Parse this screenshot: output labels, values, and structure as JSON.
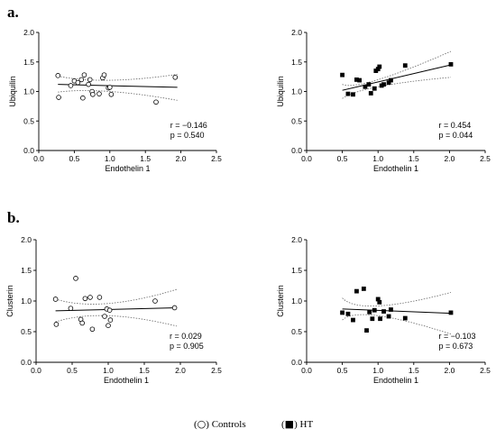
{
  "panel_labels": [
    "a.",
    "b."
  ],
  "legend": [
    {
      "symbol": "○",
      "label": "Controls"
    },
    {
      "symbol": "■",
      "label": "HT"
    }
  ],
  "chart_data": [
    {
      "type": "scatter",
      "panel": "a",
      "group": "Controls",
      "marker": "open-circle",
      "xlabel": "Endothelin 1",
      "ylabel": "Ubiquilin",
      "xlim": [
        0.0,
        2.5
      ],
      "ylim": [
        0.0,
        2.0
      ],
      "xticks": [
        "0.0",
        "0.5",
        "1.0",
        "1.5",
        "2.0",
        "2.5"
      ],
      "yticks": [
        "0.0",
        "0.5",
        "1.0",
        "1.5",
        "2.0"
      ],
      "points": [
        [
          0.27,
          1.27
        ],
        [
          0.28,
          0.9
        ],
        [
          0.45,
          1.1
        ],
        [
          0.5,
          1.18
        ],
        [
          0.55,
          1.15
        ],
        [
          0.6,
          1.2
        ],
        [
          0.62,
          0.89
        ],
        [
          0.64,
          1.28
        ],
        [
          0.7,
          1.12
        ],
        [
          0.72,
          1.2
        ],
        [
          0.75,
          1.0
        ],
        [
          0.76,
          0.95
        ],
        [
          0.85,
          0.96
        ],
        [
          0.9,
          1.23
        ],
        [
          0.92,
          1.28
        ],
        [
          0.98,
          1.06
        ],
        [
          1.0,
          1.07
        ],
        [
          1.02,
          0.95
        ],
        [
          1.65,
          0.82
        ],
        [
          1.92,
          1.24
        ]
      ],
      "fit": {
        "x": [
          0.27,
          1.95
        ],
        "y": [
          1.12,
          1.07
        ]
      },
      "ci_upper": [
        [
          0.27,
          1.26
        ],
        [
          1.0,
          1.19
        ],
        [
          1.95,
          1.29
        ]
      ],
      "ci_lower": [
        [
          0.27,
          0.99
        ],
        [
          1.0,
          1.0
        ],
        [
          1.95,
          0.85
        ]
      ],
      "annotation": {
        "r": "r = −0.146",
        "p": "p = 0.540"
      }
    },
    {
      "type": "scatter",
      "panel": "a",
      "group": "HT",
      "marker": "filled-square",
      "xlabel": "Endothelin 1",
      "ylabel": "Ubiquilin",
      "xlim": [
        0.0,
        2.5
      ],
      "ylim": [
        0.0,
        2.0
      ],
      "xticks": [
        "0.0",
        "0.5",
        "1.0",
        "1.5",
        "2.0",
        "2.5"
      ],
      "yticks": [
        "0.0",
        "0.5",
        "1.0",
        "1.5",
        "2.0"
      ],
      "points": [
        [
          0.5,
          1.28
        ],
        [
          0.58,
          0.96
        ],
        [
          0.65,
          0.95
        ],
        [
          0.7,
          1.2
        ],
        [
          0.74,
          1.19
        ],
        [
          0.82,
          1.08
        ],
        [
          0.87,
          1.12
        ],
        [
          0.9,
          0.97
        ],
        [
          0.95,
          1.05
        ],
        [
          0.97,
          1.35
        ],
        [
          1.0,
          1.38
        ],
        [
          1.02,
          1.42
        ],
        [
          1.05,
          1.1
        ],
        [
          1.08,
          1.12
        ],
        [
          1.15,
          1.15
        ],
        [
          1.18,
          1.19
        ],
        [
          1.38,
          1.44
        ],
        [
          2.02,
          1.46
        ]
      ],
      "fit": {
        "x": [
          0.5,
          2.02
        ],
        "y": [
          1.02,
          1.45
        ]
      },
      "ci_upper": [
        [
          0.5,
          1.12
        ],
        [
          1.0,
          1.2
        ],
        [
          2.02,
          1.68
        ]
      ],
      "ci_lower": [
        [
          0.5,
          0.88
        ],
        [
          1.0,
          1.08
        ],
        [
          2.02,
          1.24
        ]
      ],
      "annotation": {
        "r": "r = 0.454",
        "p": "p = 0.044"
      }
    },
    {
      "type": "scatter",
      "panel": "b",
      "group": "Controls",
      "marker": "open-circle",
      "xlabel": "Endothelin 1",
      "ylabel": "Clusterin",
      "xlim": [
        0.0,
        2.5
      ],
      "ylim": [
        0.0,
        2.0
      ],
      "xticks": [
        "0.0",
        "0.5",
        "1.0",
        "1.5",
        "2.0",
        "2.5"
      ],
      "yticks": [
        "0.0",
        "0.5",
        "1.0",
        "1.5",
        "2.0"
      ],
      "points": [
        [
          0.27,
          1.03
        ],
        [
          0.28,
          0.62
        ],
        [
          0.48,
          0.88
        ],
        [
          0.55,
          1.37
        ],
        [
          0.62,
          0.7
        ],
        [
          0.64,
          0.64
        ],
        [
          0.68,
          1.04
        ],
        [
          0.75,
          1.06
        ],
        [
          0.78,
          0.54
        ],
        [
          0.88,
          1.06
        ],
        [
          0.95,
          0.75
        ],
        [
          0.98,
          0.87
        ],
        [
          1.0,
          0.6
        ],
        [
          1.02,
          0.85
        ],
        [
          1.03,
          0.69
        ],
        [
          1.65,
          1.0
        ],
        [
          1.92,
          0.89
        ]
      ],
      "fit": {
        "x": [
          0.27,
          1.95
        ],
        "y": [
          0.84,
          0.89
        ]
      },
      "ci_upper": [
        [
          0.27,
          1.03
        ],
        [
          1.0,
          0.96
        ],
        [
          1.95,
          1.19
        ]
      ],
      "ci_lower": [
        [
          0.27,
          0.66
        ],
        [
          1.0,
          0.76
        ],
        [
          1.95,
          0.59
        ]
      ],
      "annotation": {
        "r": "r = 0.029",
        "p": "p = 0.905"
      }
    },
    {
      "type": "scatter",
      "panel": "b",
      "group": "HT",
      "marker": "filled-square",
      "xlabel": "Endothelin 1",
      "ylabel": "Clusterin",
      "xlim": [
        0.0,
        2.5
      ],
      "ylim": [
        0.0,
        2.0
      ],
      "xticks": [
        "0.0",
        "0.5",
        "1.0",
        "1.5",
        "2.0",
        "2.5"
      ],
      "yticks": [
        "0.0",
        "0.5",
        "1.0",
        "1.5",
        "2.0"
      ],
      "points": [
        [
          0.5,
          0.81
        ],
        [
          0.58,
          0.79
        ],
        [
          0.65,
          0.69
        ],
        [
          0.7,
          1.16
        ],
        [
          0.8,
          1.2
        ],
        [
          0.84,
          0.52
        ],
        [
          0.88,
          0.82
        ],
        [
          0.92,
          0.71
        ],
        [
          0.95,
          0.85
        ],
        [
          1.0,
          1.03
        ],
        [
          1.02,
          0.98
        ],
        [
          1.03,
          0.71
        ],
        [
          1.08,
          0.83
        ],
        [
          1.15,
          0.75
        ],
        [
          1.18,
          0.86
        ],
        [
          1.38,
          0.72
        ],
        [
          2.02,
          0.81
        ]
      ],
      "fit": {
        "x": [
          0.5,
          2.02
        ],
        "y": [
          0.87,
          0.8
        ]
      },
      "ci_upper": [
        [
          0.5,
          1.05
        ],
        [
          1.0,
          0.92
        ],
        [
          2.02,
          1.14
        ]
      ],
      "ci_lower": [
        [
          0.5,
          0.69
        ],
        [
          1.0,
          0.76
        ],
        [
          2.02,
          0.46
        ]
      ],
      "annotation": {
        "r": "r = −0.103",
        "p": "p = 0.673"
      }
    }
  ]
}
